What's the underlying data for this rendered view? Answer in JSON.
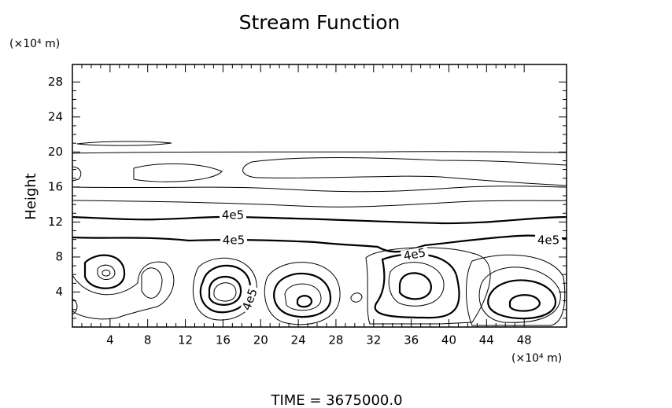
{
  "chart_data": {
    "type": "contour",
    "title": "Stream Function",
    "ylabel": "Height",
    "yunit": "(×10⁴ m)",
    "xunit": "(×10⁴ m)",
    "footer": "TIME = 3675000.0",
    "xlim": [
      0,
      52.5
    ],
    "ylim": [
      0,
      30
    ],
    "xticks": [
      4,
      8,
      12,
      16,
      20,
      24,
      28,
      32,
      36,
      40,
      44,
      48
    ],
    "yticks": [
      4,
      8,
      12,
      16,
      20,
      24,
      28
    ],
    "contour_labels": [
      "4e5",
      "4e5",
      "4e5",
      "4e5",
      "4e5"
    ],
    "color": "#000000"
  }
}
